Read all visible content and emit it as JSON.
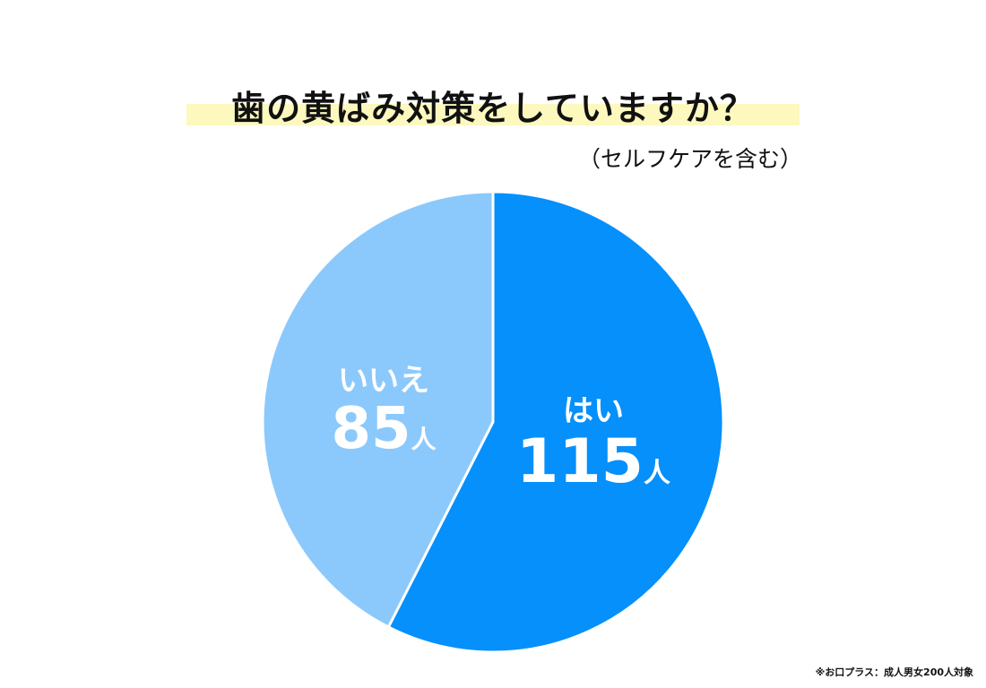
{
  "chart_data": {
    "type": "pie",
    "title": "歯の黄ばみ対策をしていますか？",
    "subtitle": "（セルフケアを含む）",
    "unit": "人",
    "slices": [
      {
        "label": "はい",
        "value": 115,
        "color": "#0590fb"
      },
      {
        "label": "いいえ",
        "value": 85,
        "color": "#8bc9fc"
      }
    ],
    "start": "12 o'clock",
    "direction": "clockwise",
    "legend": "none"
  },
  "footnote": "※お口プラス：成人男女200人対象"
}
